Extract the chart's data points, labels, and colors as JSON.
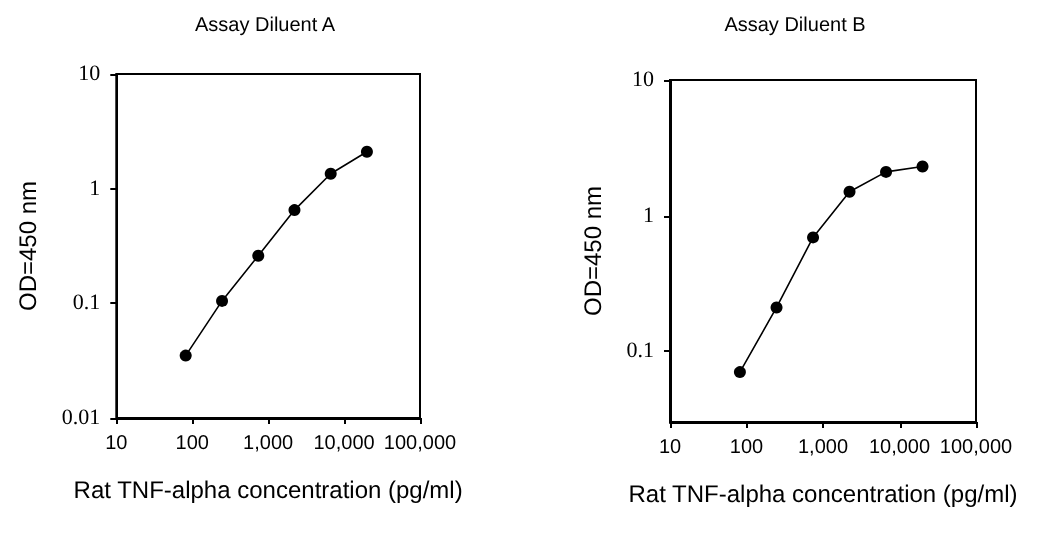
{
  "chart_data": [
    {
      "type": "line",
      "title": "Assay Diluent A",
      "xlabel": "Rat TNF-alpha concentration (pg/ml)",
      "ylabel": "OD=450 nm",
      "log": "xy",
      "grid": false,
      "marker": "circle",
      "line_style": "solid",
      "xlim": [
        10,
        100000
      ],
      "xticks": [
        10,
        {
          "value": 100,
          "label": "100"
        },
        {
          "value": 1000,
          "label": "1,000"
        },
        {
          "value": 10000,
          "label": "10,000"
        },
        {
          "value": 100000,
          "label": "100,000"
        }
      ],
      "ylim": [
        0.01,
        10
      ],
      "yticks": [
        0.01,
        0.1,
        1,
        10
      ],
      "series": [
        {
          "color": "#000000",
          "x": [
            82,
            247,
            741,
            2222,
            6667,
            20000
          ],
          "values": [
            0.035,
            0.105,
            0.26,
            0.65,
            1.35,
            2.1
          ]
        }
      ]
    },
    {
      "type": "line",
      "title": "Assay Diluent B",
      "xlabel": "Rat TNF-alpha concentration (pg/ml)",
      "ylabel": "OD=450 nm",
      "log": "xy",
      "grid": false,
      "marker": "circle",
      "line_style": "solid",
      "xlim": [
        10,
        100000
      ],
      "xticks": [
        10,
        {
          "value": 100,
          "label": "100"
        },
        {
          "value": 1000,
          "label": "1,000"
        },
        {
          "value": 10000,
          "label": "10,000"
        },
        {
          "value": 100000,
          "label": "100,000"
        }
      ],
      "ylim": [
        0.03,
        10
      ],
      "yticks": [
        0.1,
        1,
        10
      ],
      "series": [
        {
          "color": "#000000",
          "x": [
            82,
            247,
            741,
            2222,
            6667,
            20000
          ],
          "values": [
            0.07,
            0.21,
            0.69,
            1.5,
            2.1,
            2.3
          ]
        }
      ]
    }
  ]
}
